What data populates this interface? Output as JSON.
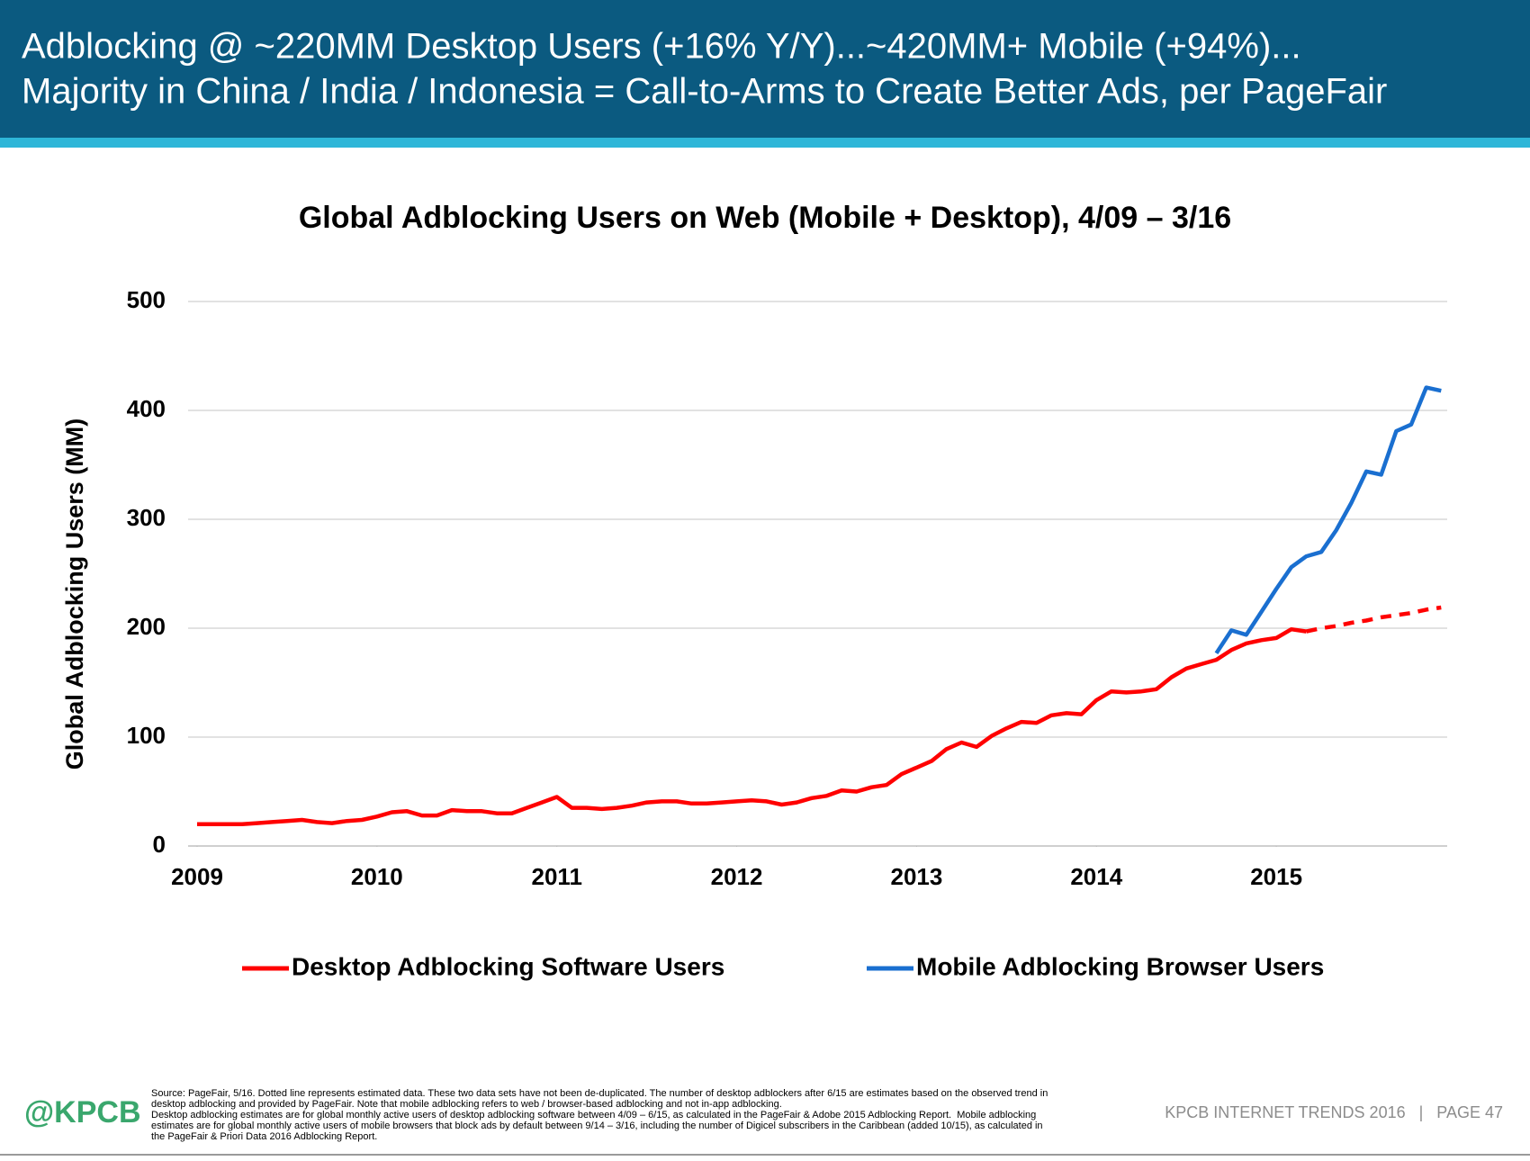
{
  "header": {
    "title_lines": [
      "Adblocking @ ~220MM Desktop Users (+16% Y/Y)...~420MM+ Mobile (+94%)...",
      "Majority in China / India / Indonesia = Call-to-Arms to Create Better Ads, per PageFair"
    ]
  },
  "chart_data": {
    "type": "line",
    "title": "Global Adblocking Users on Web (Mobile + Desktop), 4/09 – 3/16",
    "y_label": "Global Adblocking Users (MM)",
    "x": [
      2009.25,
      2009.3333,
      2009.4167,
      2009.5,
      2009.5833,
      2009.6667,
      2009.75,
      2009.8333,
      2009.9167,
      2010,
      2010.0833,
      2010.1667,
      2010.25,
      2010.3333,
      2010.4167,
      2010.5,
      2010.5833,
      2010.6667,
      2010.75,
      2010.8333,
      2010.9167,
      2011,
      2011.0833,
      2011.1667,
      2011.25,
      2011.3333,
      2011.4167,
      2011.5,
      2011.5833,
      2011.6667,
      2011.75,
      2011.8333,
      2011.9167,
      2012,
      2012.0833,
      2012.1667,
      2012.25,
      2012.3333,
      2012.4167,
      2012.5,
      2012.5833,
      2012.6667,
      2012.75,
      2012.8333,
      2012.9167,
      2013,
      2013.0833,
      2013.1667,
      2013.25,
      2013.3333,
      2013.4167,
      2013.5,
      2013.5833,
      2013.6667,
      2013.75,
      2013.8333,
      2013.9167,
      2014,
      2014.0833,
      2014.1667,
      2014.25,
      2014.3333,
      2014.4167,
      2014.5,
      2014.5833,
      2014.6667,
      2014.75,
      2014.8333,
      2014.9167,
      2015,
      2015.0833,
      2015.1667,
      2015.25,
      2015.3333,
      2015.4167,
      2015.5,
      2015.5833,
      2015.6667,
      2015.75,
      2015.8333,
      2015.9167,
      2016,
      2016.0833,
      2016.1667
    ],
    "series": [
      {
        "name": "Desktop Adblocking Software Users",
        "color": "#ff0000",
        "estimated_after": 2015.4167,
        "values": [
          20,
          20,
          20,
          20,
          21,
          22,
          23,
          24,
          22,
          21,
          23,
          24,
          27,
          31,
          32,
          28,
          28,
          33,
          32,
          32,
          30,
          30,
          35,
          40,
          45,
          35,
          35,
          34,
          35,
          37,
          40,
          41,
          41,
          39,
          39,
          40,
          41,
          42,
          41,
          38,
          40,
          44,
          46,
          51,
          50,
          54,
          56,
          66,
          72,
          78,
          89,
          95,
          91,
          101,
          108,
          114,
          113,
          120,
          122,
          121,
          134,
          142,
          141,
          142,
          144,
          155,
          163,
          167,
          171,
          180,
          186,
          189,
          191,
          199,
          197,
          200,
          202,
          205,
          207,
          210,
          212,
          214,
          217,
          219
        ]
      },
      {
        "name": "Mobile Adblocking Browser Users",
        "color": "#1a6fd0",
        "values": [
          null,
          null,
          null,
          null,
          null,
          null,
          null,
          null,
          null,
          null,
          null,
          null,
          null,
          null,
          null,
          null,
          null,
          null,
          null,
          null,
          null,
          null,
          null,
          null,
          null,
          null,
          null,
          null,
          null,
          null,
          null,
          null,
          null,
          null,
          null,
          null,
          null,
          null,
          null,
          null,
          null,
          null,
          null,
          null,
          null,
          null,
          null,
          null,
          null,
          null,
          null,
          null,
          null,
          null,
          null,
          null,
          null,
          null,
          null,
          null,
          null,
          null,
          null,
          null,
          null,
          null,
          null,
          null,
          177,
          198,
          194,
          215,
          236,
          256,
          266,
          270,
          290,
          315,
          344,
          341,
          381,
          387,
          421,
          418
        ]
      }
    ],
    "xlim": [
      2009.2,
      2016.2
    ],
    "xticks": [
      {
        "value": 2009.25,
        "label": "2009"
      },
      {
        "value": 2010.25,
        "label": "2010"
      },
      {
        "value": 2011.25,
        "label": "2011"
      },
      {
        "value": 2012.25,
        "label": "2012"
      },
      {
        "value": 2013.25,
        "label": "2013"
      },
      {
        "value": 2014.25,
        "label": "2014"
      },
      {
        "value": 2015.25,
        "label": "2015"
      }
    ],
    "ylim": [
      0,
      500
    ],
    "yticks": [
      0,
      100,
      200,
      300,
      400,
      500
    ],
    "grid": true,
    "legend": "bottom"
  },
  "footer": {
    "logo": "@KPCB",
    "source_lines": [
      "Source: PageFair, 5/16. Dotted line represents estimated data. These two data sets have not been de-duplicated. The number of desktop adblockers after 6/15 are estimates based on the observed trend in",
      "desktop adblocking and provided by PageFair. Note that mobile adblocking refers to web / browser-based adblocking and not in-app adblocking.",
      "Desktop adblocking estimates are for global monthly active users of desktop adblocking software between 4/09 – 6/15, as calculated in the PageFair & Adobe 2015 Adblocking Report.  Mobile adblocking",
      "estimates are for global monthly active users of mobile browsers that block ads by default between 9/14 – 3/16, including the number of Digicel subscribers in the Caribbean (added 10/15), as calculated in",
      "the PageFair & Priori Data 2016 Adblocking Report."
    ],
    "page_label": "KPCB INTERNET TRENDS 2016   |   PAGE 47"
  }
}
